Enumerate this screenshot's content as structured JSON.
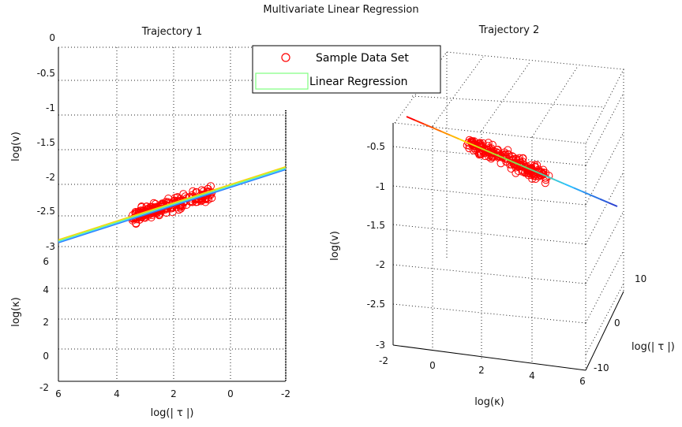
{
  "figure": {
    "title": "Multivariate Linear Regression"
  },
  "legend": {
    "items": [
      {
        "label": "Sample Data Set",
        "marker": "circle",
        "color": "#ff0000"
      },
      {
        "label": "Linear Regression",
        "marker": "line",
        "color": "#7fff7f"
      }
    ],
    "placement": "top-center"
  },
  "chart_data": [
    {
      "type": "scatter",
      "title": "Trajectory 1",
      "view": "3D projection onto log(|τ|) horizontal axis",
      "ylabel": "log(v)",
      "zlabel": "log(κ)",
      "xlabel": "log(| τ |)",
      "y_axis": {
        "label": "log(v)",
        "range": [
          -3,
          0
        ],
        "ticks": [
          "0",
          "-0.5",
          "-1",
          "-1.5",
          "-2",
          "-2.5",
          "-3"
        ]
      },
      "z_axis": {
        "label": "log(κ)",
        "range": [
          -2,
          6
        ],
        "ticks": [
          "6",
          "4",
          "2",
          "0",
          "-2"
        ]
      },
      "x_axis": {
        "label": "log(| τ |)",
        "range": [
          6,
          -2
        ],
        "ticks": [
          "6",
          "4",
          "2",
          "0",
          "-2"
        ]
      },
      "regression_line": {
        "x": [
          6,
          -2
        ],
        "y": [
          -2.92,
          -1.82
        ]
      },
      "scatter_cluster": {
        "x_range": [
          0.6,
          3.4
        ],
        "y_center": -2.35,
        "count": 220
      },
      "grid": true
    },
    {
      "type": "scatter",
      "title": "Trajectory 2",
      "view": "3D rotated",
      "ylabel": "log(v)",
      "xlabel": "log(κ)",
      "zlabel": "log(| τ |)",
      "y_axis": {
        "label": "log(v)",
        "range": [
          -3,
          -0.5
        ],
        "ticks": [
          "-0.5",
          "-1",
          "-1.5",
          "-2",
          "-2.5",
          "-3"
        ]
      },
      "x_axis": {
        "label": "log(κ)",
        "range": [
          -2,
          6
        ],
        "ticks": [
          "-2",
          "0",
          "2",
          "4",
          "6"
        ]
      },
      "z_axis": {
        "label": "log(| τ |)",
        "range": [
          -10,
          10
        ],
        "ticks": [
          "10",
          "0",
          "-10"
        ]
      },
      "regression_line": {
        "description": "colored line from upper-left to lower-right"
      },
      "scatter_cluster": {
        "center_y": -0.7,
        "count": 200
      },
      "grid": true
    }
  ]
}
